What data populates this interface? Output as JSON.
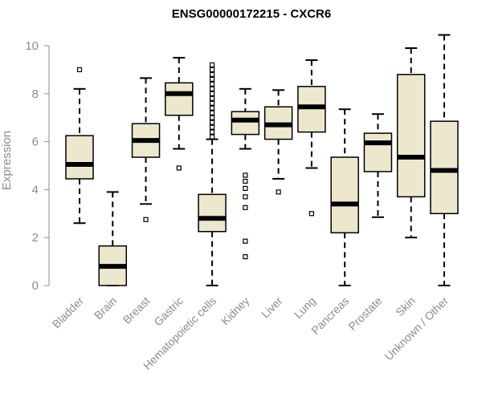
{
  "chart_data": {
    "type": "boxplot",
    "title": "ENSG00000172215 - CXCR6",
    "ylabel": "Expression",
    "ylim": [
      0,
      10.5
    ],
    "yticks": [
      0,
      2,
      4,
      6,
      8,
      10
    ],
    "box_fill": "#ede7ce",
    "categories": [
      "Bladder",
      "Brain",
      "Breast",
      "Gastric",
      "Hematopoietic cells",
      "Kidney",
      "Liver",
      "Lung",
      "Pancreas",
      "Prostate",
      "Skin",
      "Unknown / Other"
    ],
    "boxes": [
      {
        "min": 2.6,
        "q1": 4.45,
        "median": 5.05,
        "q3": 6.25,
        "max": 8.2,
        "outliers": [
          9.0
        ]
      },
      {
        "min": 0.0,
        "q1": 0.0,
        "median": 0.8,
        "q3": 1.65,
        "max": 3.9,
        "outliers": []
      },
      {
        "min": 3.4,
        "q1": 5.35,
        "median": 6.05,
        "q3": 6.75,
        "max": 8.65,
        "outliers": [
          2.75
        ]
      },
      {
        "min": 5.7,
        "q1": 7.1,
        "median": 8.0,
        "q3": 8.45,
        "max": 9.5,
        "outliers": [
          4.9
        ]
      },
      {
        "min": 0.0,
        "q1": 2.25,
        "median": 2.8,
        "q3": 3.8,
        "max": 6.1,
        "outliers": [
          6.2,
          6.4,
          6.6,
          6.8,
          7.0,
          7.2,
          7.4,
          7.6,
          7.8,
          8.0,
          8.2,
          8.4,
          8.6,
          8.8,
          9.0,
          9.2
        ]
      },
      {
        "min": 5.7,
        "q1": 6.3,
        "median": 6.9,
        "q3": 7.25,
        "max": 8.2,
        "outliers": [
          4.6,
          4.35,
          4.05,
          3.7,
          3.25,
          1.85,
          1.2
        ]
      },
      {
        "min": 4.45,
        "q1": 6.1,
        "median": 6.7,
        "q3": 7.45,
        "max": 8.15,
        "outliers": [
          3.9
        ]
      },
      {
        "min": 4.9,
        "q1": 6.4,
        "median": 7.45,
        "q3": 8.3,
        "max": 9.4,
        "outliers": [
          3.0
        ]
      },
      {
        "min": 0.0,
        "q1": 2.2,
        "median": 3.4,
        "q3": 5.35,
        "max": 7.35,
        "outliers": []
      },
      {
        "min": 2.85,
        "q1": 4.75,
        "median": 5.95,
        "q3": 6.35,
        "max": 7.15,
        "outliers": []
      },
      {
        "min": 2.0,
        "q1": 3.7,
        "median": 5.35,
        "q3": 8.8,
        "max": 9.9,
        "outliers": []
      },
      {
        "min": 0.0,
        "q1": 3.0,
        "median": 4.8,
        "q3": 6.85,
        "max": 10.45,
        "outliers": []
      }
    ]
  }
}
